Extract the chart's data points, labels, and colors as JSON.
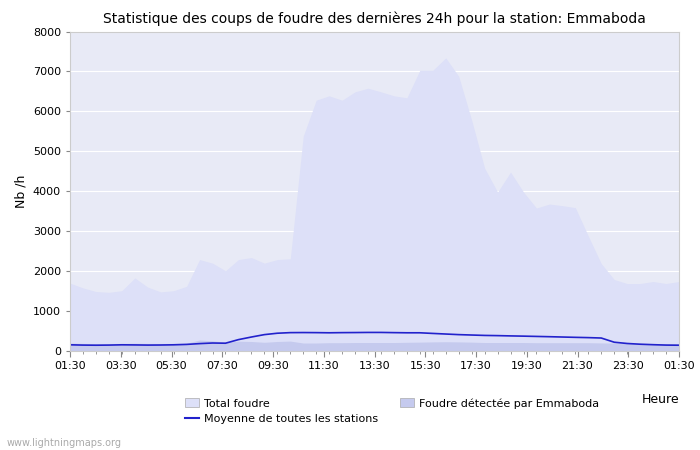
{
  "title": "Statistique des coups de foudre des dernières 24h pour la station: Emmaboda",
  "ylabel": "Nb /h",
  "xlabel": "Heure",
  "watermark": "www.lightningmaps.org",
  "ylim": [
    0,
    8000
  ],
  "yticks": [
    0,
    1000,
    2000,
    3000,
    4000,
    5000,
    6000,
    7000,
    8000
  ],
  "xtick_labels": [
    "01:30",
    "03:30",
    "05:30",
    "07:30",
    "09:30",
    "11:30",
    "13:30",
    "15:30",
    "17:30",
    "19:30",
    "21:30",
    "23:30",
    "01:30"
  ],
  "plot_bg_color": "#e8eaf6",
  "total_foudre_color": "#dde0f8",
  "emmaboda_color": "#c5caee",
  "moyenne_color": "#2222cc",
  "total_foudre": [
    1700,
    1580,
    1490,
    1470,
    1510,
    1830,
    1600,
    1480,
    1510,
    1620,
    2290,
    2200,
    2010,
    2290,
    2340,
    2200,
    2290,
    2310,
    5380,
    6280,
    6390,
    6280,
    6490,
    6580,
    6490,
    6390,
    6340,
    7030,
    7030,
    7340,
    6880,
    5780,
    4580,
    3980,
    4480,
    3980,
    3580,
    3680,
    3640,
    3590,
    2880,
    2190,
    1790,
    1690,
    1690,
    1740,
    1690,
    1740
  ],
  "emmaboda": [
    200,
    190,
    185,
    185,
    190,
    195,
    190,
    188,
    190,
    195,
    275,
    255,
    222,
    245,
    238,
    218,
    238,
    248,
    200,
    200,
    208,
    208,
    212,
    212,
    212,
    212,
    218,
    222,
    228,
    232,
    228,
    222,
    212,
    212,
    212,
    212,
    208,
    208,
    208,
    208,
    208,
    202,
    198,
    193,
    188,
    183,
    183,
    183
  ],
  "moyenne": [
    155,
    148,
    145,
    148,
    155,
    152,
    148,
    150,
    155,
    165,
    185,
    200,
    195,
    285,
    350,
    410,
    445,
    460,
    462,
    460,
    456,
    460,
    462,
    465,
    465,
    460,
    456,
    456,
    440,
    425,
    410,
    400,
    390,
    385,
    378,
    372,
    365,
    358,
    350,
    342,
    335,
    325,
    220,
    188,
    170,
    158,
    148,
    145
  ]
}
